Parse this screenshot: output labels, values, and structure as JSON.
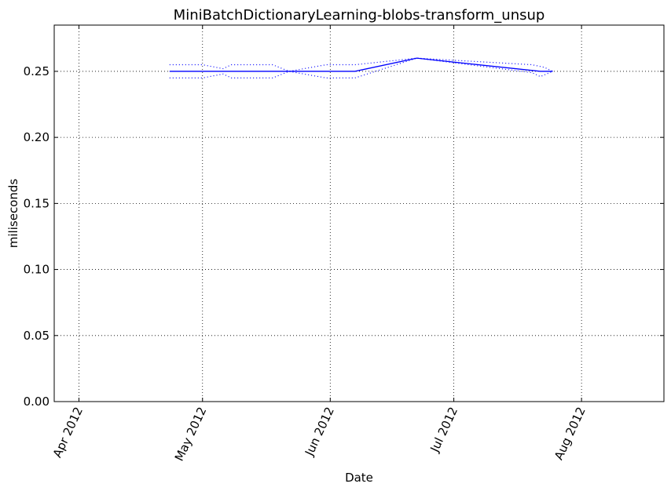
{
  "chart_data": {
    "type": "line",
    "title": "MiniBatchDictionaryLearning-blobs-transform_unsup",
    "xlabel": "Date",
    "ylabel": "miliseconds",
    "x_axis_type": "date",
    "xlim": [
      "2012-03-26",
      "2012-08-21"
    ],
    "ylim": [
      0,
      0.285
    ],
    "grid": true,
    "x_ticks": [
      {
        "date": "2012-04-01",
        "label": "Apr 2012"
      },
      {
        "date": "2012-05-01",
        "label": "May 2012"
      },
      {
        "date": "2012-06-01",
        "label": "Jun 2012"
      },
      {
        "date": "2012-07-01",
        "label": "Jul 2012"
      },
      {
        "date": "2012-08-01",
        "label": "Aug 2012"
      }
    ],
    "y_ticks": [
      {
        "value": 0.0,
        "label": "0.00"
      },
      {
        "value": 0.05,
        "label": "0.05"
      },
      {
        "value": 0.1,
        "label": "0.10"
      },
      {
        "value": 0.15,
        "label": "0.15"
      },
      {
        "value": 0.2,
        "label": "0.20"
      },
      {
        "value": 0.25,
        "label": "0.25"
      }
    ],
    "series": [
      {
        "style": "solid",
        "color": "#0000ff",
        "points": [
          {
            "x": "2012-04-23",
            "y": 0.25
          },
          {
            "x": "2012-05-01",
            "y": 0.25
          },
          {
            "x": "2012-05-09",
            "y": 0.25
          },
          {
            "x": "2012-05-19",
            "y": 0.25
          },
          {
            "x": "2012-06-01",
            "y": 0.25
          },
          {
            "x": "2012-06-07",
            "y": 0.25
          },
          {
            "x": "2012-06-22",
            "y": 0.26
          },
          {
            "x": "2012-07-22",
            "y": 0.25
          },
          {
            "x": "2012-07-25",
            "y": 0.25
          }
        ]
      },
      {
        "style": "dotted",
        "color": "#0000ff",
        "points": [
          {
            "x": "2012-04-23",
            "y": 0.255
          },
          {
            "x": "2012-05-01",
            "y": 0.255
          },
          {
            "x": "2012-05-06",
            "y": 0.252
          },
          {
            "x": "2012-05-08",
            "y": 0.255
          },
          {
            "x": "2012-05-18",
            "y": 0.255
          },
          {
            "x": "2012-05-22",
            "y": 0.25
          },
          {
            "x": "2012-05-31",
            "y": 0.255
          },
          {
            "x": "2012-06-07",
            "y": 0.255
          },
          {
            "x": "2012-06-22",
            "y": 0.26
          },
          {
            "x": "2012-07-20",
            "y": 0.255
          },
          {
            "x": "2012-07-23",
            "y": 0.253
          },
          {
            "x": "2012-07-25",
            "y": 0.25
          }
        ]
      },
      {
        "style": "dotted",
        "color": "#0000ff",
        "points": [
          {
            "x": "2012-04-23",
            "y": 0.245
          },
          {
            "x": "2012-05-01",
            "y": 0.245
          },
          {
            "x": "2012-05-06",
            "y": 0.248
          },
          {
            "x": "2012-05-08",
            "y": 0.245
          },
          {
            "x": "2012-05-18",
            "y": 0.245
          },
          {
            "x": "2012-05-22",
            "y": 0.25
          },
          {
            "x": "2012-05-31",
            "y": 0.245
          },
          {
            "x": "2012-06-07",
            "y": 0.245
          },
          {
            "x": "2012-06-22",
            "y": 0.26
          },
          {
            "x": "2012-07-20",
            "y": 0.249
          },
          {
            "x": "2012-07-22",
            "y": 0.246
          },
          {
            "x": "2012-07-25",
            "y": 0.25
          }
        ]
      }
    ]
  }
}
